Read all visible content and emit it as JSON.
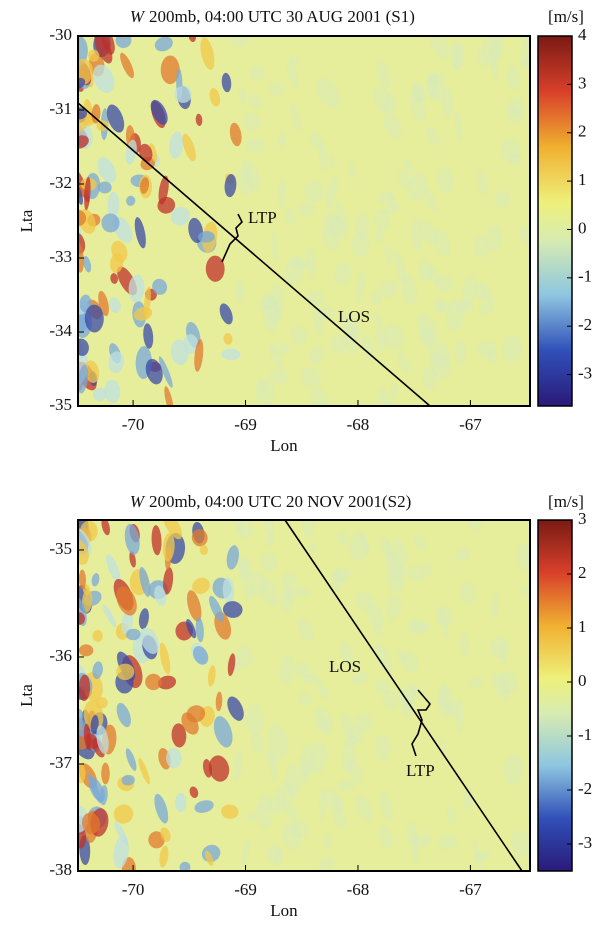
{
  "chart_data": [
    {
      "type": "heatmap",
      "title_symbol": "W",
      "title": "200mb, 04:00 UTC 30 AUG 2001 (S1)",
      "xlabel": "Lon",
      "ylabel": "Lta",
      "xlim": [
        -70.49,
        -66.47
      ],
      "ylim": [
        -35,
        -30
      ],
      "xticks": [
        -70,
        -69,
        -68,
        -67
      ],
      "yticks": [
        -30,
        -31,
        -32,
        -33,
        -34,
        -35
      ],
      "colorbar": {
        "label": "[m/s]",
        "lim": [
          -3.65,
          4
        ],
        "ticks": [
          4,
          3,
          2,
          1,
          0,
          -1,
          -2,
          -3
        ]
      },
      "annotations": [
        "LTP",
        "LOS"
      ]
    },
    {
      "type": "heatmap",
      "title_symbol": "W",
      "title": "200mb, 04:00 UTC 20 NOV 2001(S2)",
      "xlabel": "Lon",
      "ylabel": "Lta",
      "xlim": [
        -70.49,
        -66.47
      ],
      "ylim": [
        -38,
        -34.72
      ],
      "xticks": [
        -70,
        -69,
        -68,
        -67
      ],
      "yticks": [
        -35,
        -36,
        -37,
        -38
      ],
      "colorbar": {
        "label": "[m/s]",
        "lim": [
          -3.5,
          3
        ],
        "ticks": [
          3,
          2,
          1,
          0,
          -1,
          -2,
          -3
        ]
      },
      "annotations": [
        "LOS",
        "LTP"
      ]
    }
  ]
}
